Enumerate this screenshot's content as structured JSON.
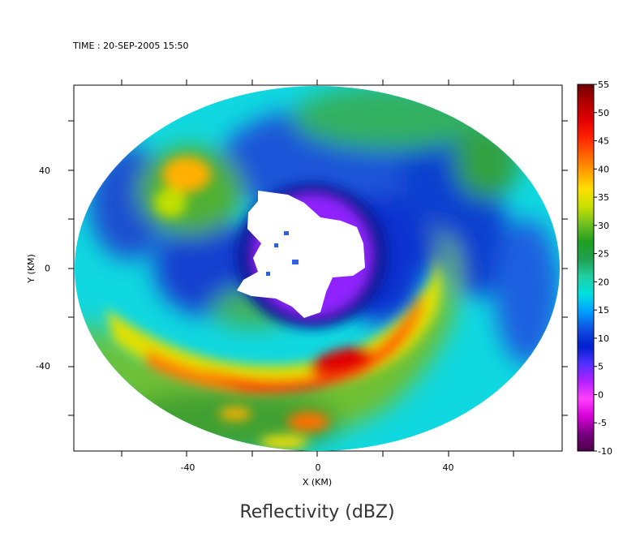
{
  "time_label": "TIME : 20-SEP-2005 15:50",
  "chart_data": {
    "type": "heatmap",
    "title": "Reflectivity (dBZ)",
    "xlabel": "X (KM)",
    "ylabel": "Y (KM)",
    "xlim": [
      -75,
      75
    ],
    "ylim": [
      -75,
      75
    ],
    "x_ticks": [
      -40,
      0,
      40
    ],
    "y_ticks": [
      -40,
      0,
      40
    ],
    "colorbar": {
      "label": "dBZ",
      "range": [
        -10,
        55
      ],
      "ticks": [
        -10,
        -5,
        0,
        5,
        10,
        15,
        20,
        25,
        30,
        35,
        40,
        45,
        50,
        55
      ],
      "colors": [
        "#4b0048",
        "#7a0080",
        "#d800d8",
        "#ff40ff",
        "#b020ff",
        "#5030ff",
        "#0020d0",
        "#1050e0",
        "#00a0ff",
        "#00e0e0",
        "#20d0a0",
        "#20a050",
        "#20a020",
        "#70c020",
        "#c8e000",
        "#ffe000",
        "#ffa000",
        "#ff6000",
        "#ff2000",
        "#e00000",
        "#b00000",
        "#700000"
      ]
    },
    "radar_coverage_radius_km": 75,
    "no_data_region": "center (eye)",
    "features": [
      {
        "name": "eyewall",
        "value_dbz": 5
      },
      {
        "name": "inner blue ring",
        "value_dbz": 12
      },
      {
        "name": "southern rainband max",
        "value_dbz": 50
      },
      {
        "name": "northwest band",
        "value_dbz": 40
      },
      {
        "name": "outer cyan field",
        "value_dbz": 20
      }
    ]
  }
}
